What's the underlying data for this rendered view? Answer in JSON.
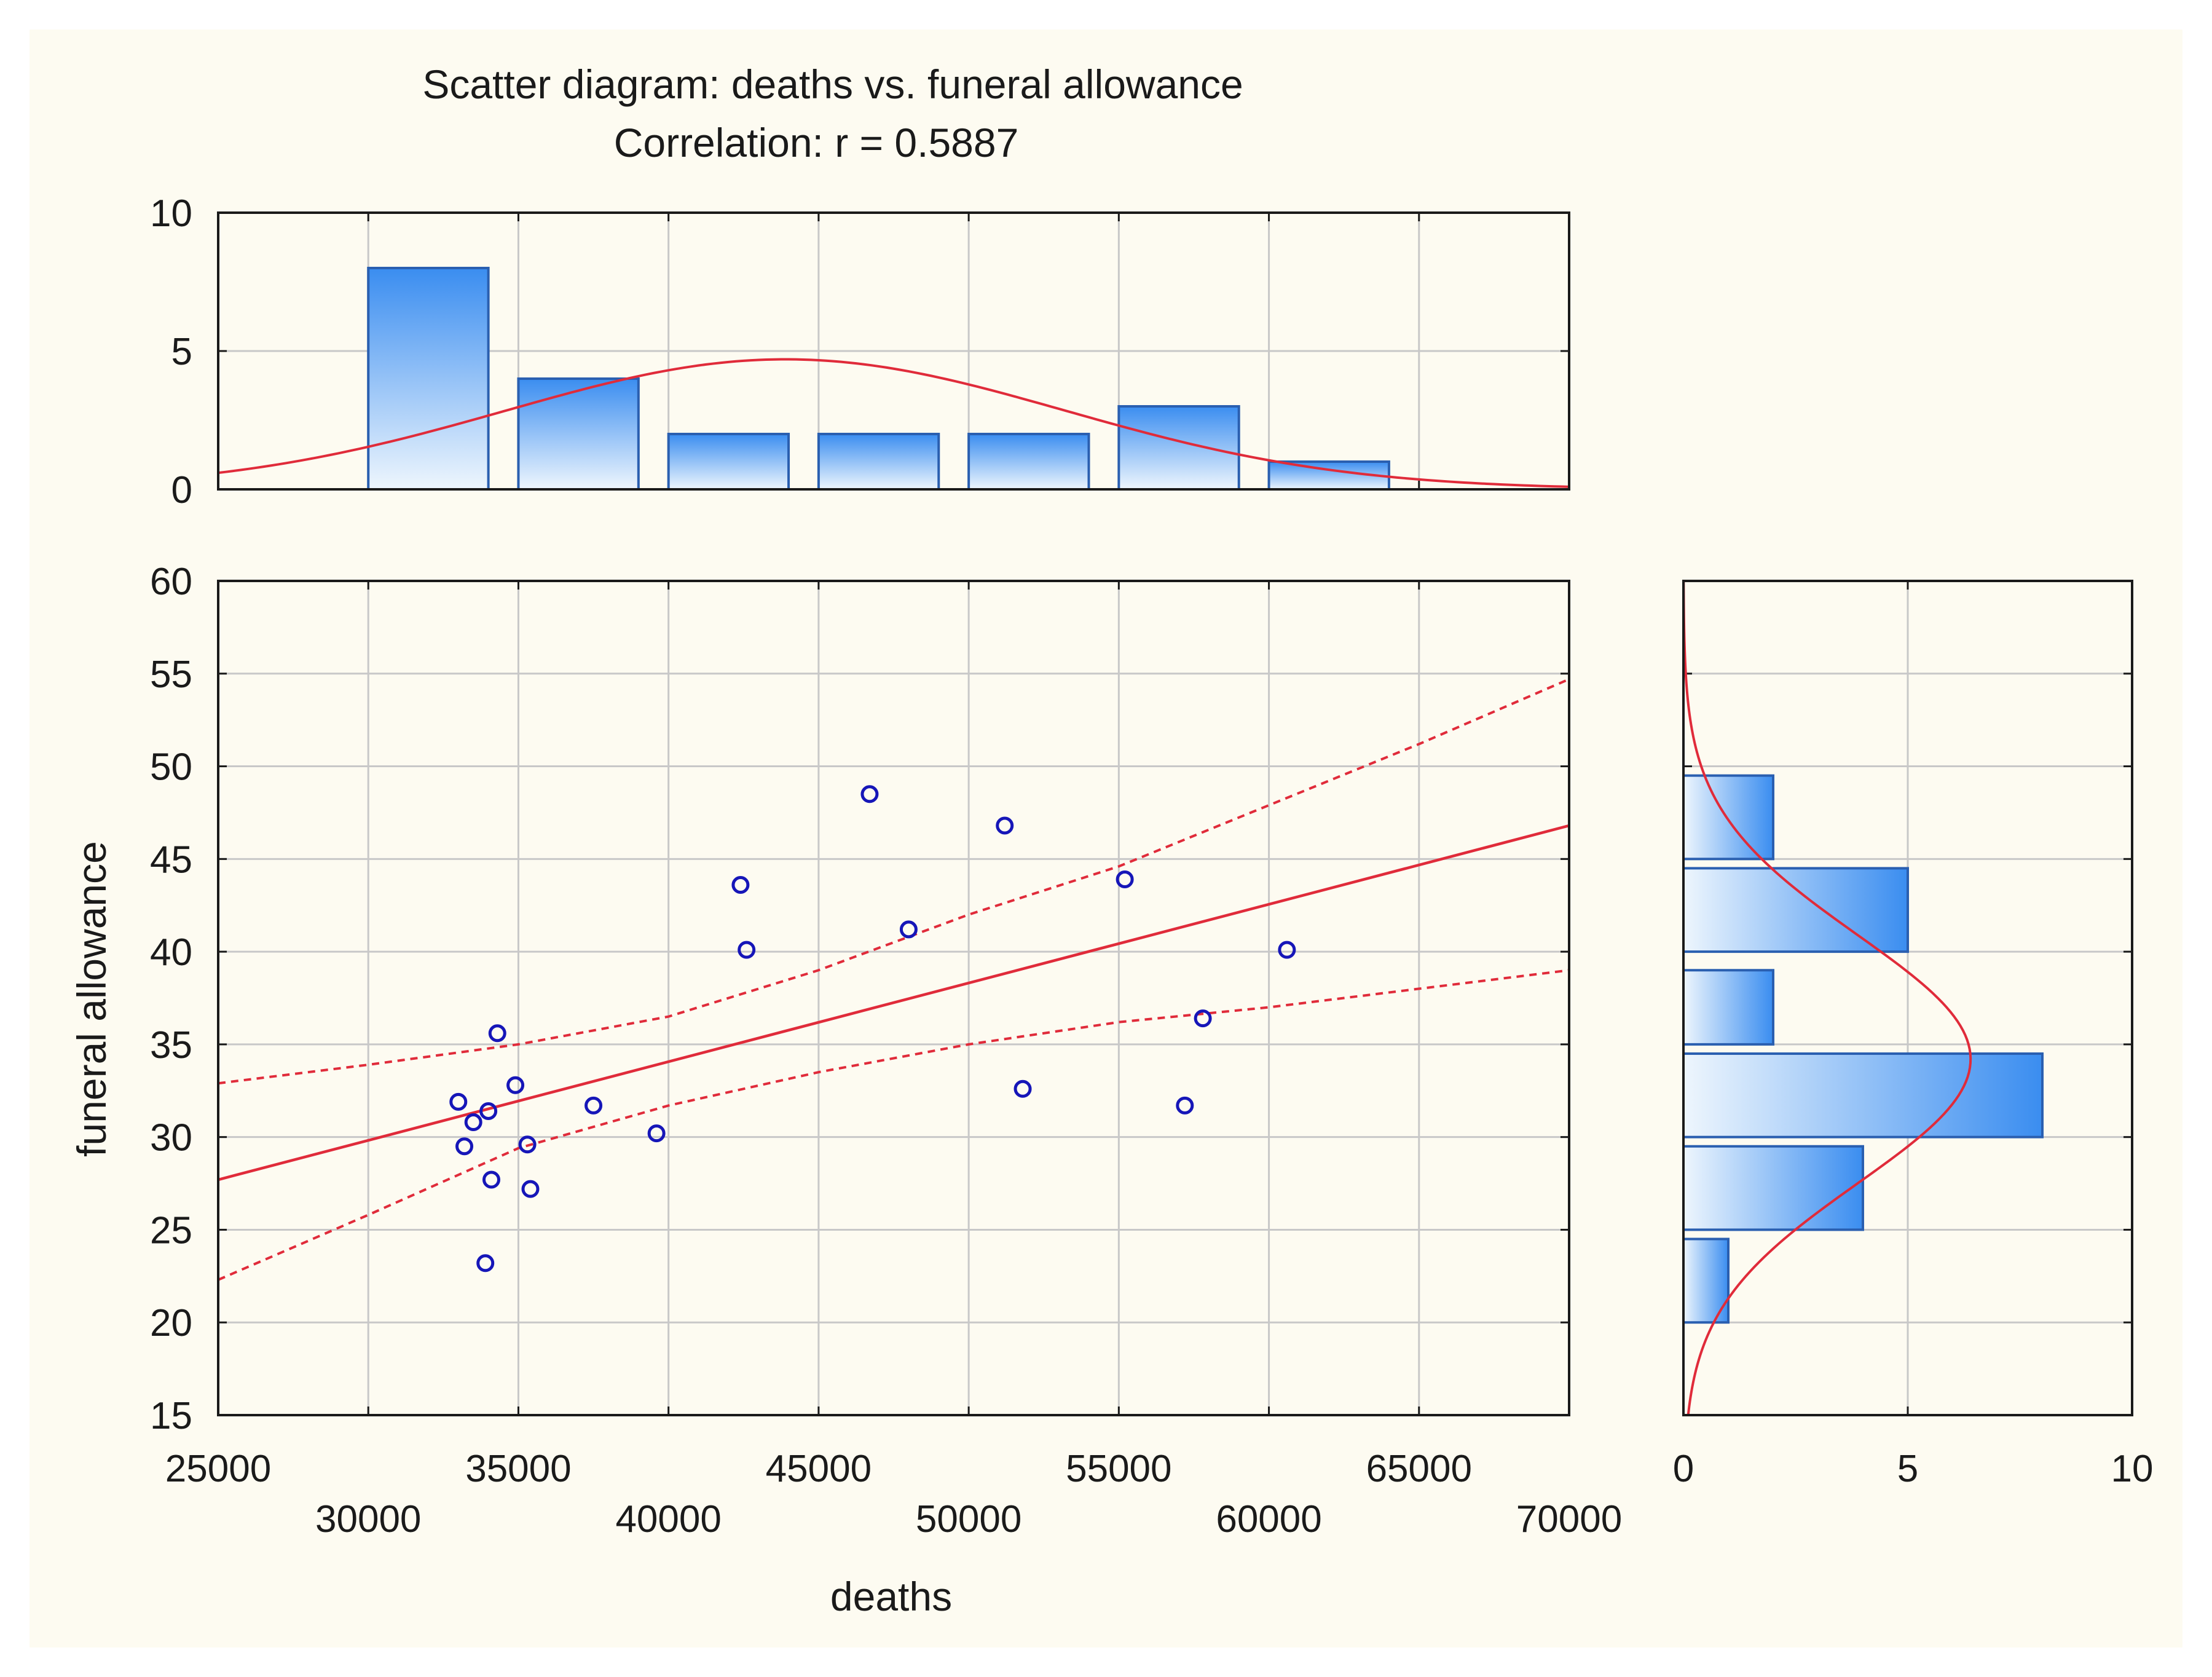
{
  "chart_data": {
    "type": "scatter",
    "title": "Scatter diagram: deaths vs. funeral allowance",
    "subtitle": "Correlation: r = 0.5887",
    "xlabel": "deaths",
    "ylabel": "funeral allowance",
    "xlim": [
      25000,
      70000
    ],
    "ylim": [
      15,
      60
    ],
    "x_ticks_upper": [
      "25000",
      "35000",
      "45000",
      "55000",
      "65000"
    ],
    "x_ticks_lower": [
      "30000",
      "40000",
      "50000",
      "60000",
      "70000"
    ],
    "y_ticks": [
      "15",
      "20",
      "25",
      "30",
      "35",
      "40",
      "45",
      "50",
      "55",
      "60"
    ],
    "grid": true,
    "points": [
      {
        "x": 33000,
        "y": 31.9
      },
      {
        "x": 33200,
        "y": 29.5
      },
      {
        "x": 33500,
        "y": 30.8
      },
      {
        "x": 33900,
        "y": 23.2
      },
      {
        "x": 34000,
        "y": 31.4
      },
      {
        "x": 34100,
        "y": 27.7
      },
      {
        "x": 34300,
        "y": 35.6
      },
      {
        "x": 34900,
        "y": 32.8
      },
      {
        "x": 35300,
        "y": 29.6
      },
      {
        "x": 35400,
        "y": 27.2
      },
      {
        "x": 37500,
        "y": 31.7
      },
      {
        "x": 39600,
        "y": 30.2
      },
      {
        "x": 42400,
        "y": 43.6
      },
      {
        "x": 42600,
        "y": 40.1
      },
      {
        "x": 46700,
        "y": 48.5
      },
      {
        "x": 48000,
        "y": 41.2
      },
      {
        "x": 51200,
        "y": 46.8
      },
      {
        "x": 51800,
        "y": 32.6
      },
      {
        "x": 55200,
        "y": 43.9
      },
      {
        "x": 57200,
        "y": 31.7
      },
      {
        "x": 57800,
        "y": 36.4
      },
      {
        "x": 60600,
        "y": 40.1
      }
    ],
    "fit_line": {
      "x": [
        25000,
        70000
      ],
      "y": [
        27.7,
        46.8
      ]
    },
    "ci_upper": {
      "x": [
        25000,
        30000,
        35000,
        40000,
        45000,
        50000,
        55000,
        60000,
        65000,
        70000
      ],
      "y": [
        32.9,
        33.9,
        35.0,
        36.5,
        39.0,
        42.0,
        44.6,
        47.9,
        51.2,
        54.7
      ]
    },
    "ci_lower": {
      "x": [
        25000,
        30000,
        35000,
        40000,
        45000,
        50000,
        55000,
        60000,
        65000,
        70000
      ],
      "y": [
        22.3,
        25.8,
        29.4,
        31.7,
        33.5,
        35.0,
        36.2,
        37.0,
        38.0,
        39.0
      ]
    },
    "top_histogram": {
      "bins": [
        [
          30000,
          34000
        ],
        [
          35000,
          39000
        ],
        [
          40000,
          44000
        ],
        [
          45000,
          49000
        ],
        [
          50000,
          54000
        ],
        [
          55000,
          59000
        ],
        [
          60000,
          64000
        ]
      ],
      "counts": [
        8,
        4,
        2,
        2,
        2,
        3,
        1
      ],
      "ylim": [
        0,
        10
      ],
      "y_ticks": [
        "0",
        "5",
        "10"
      ],
      "normal_curve": {
        "mean": 43900,
        "sd": 9300,
        "peak": 4.7
      }
    },
    "right_histogram": {
      "bins": [
        [
          20,
          24.5
        ],
        [
          25,
          29.5
        ],
        [
          30,
          34.5
        ],
        [
          35,
          39
        ],
        [
          40,
          44.5
        ],
        [
          45,
          49.5
        ]
      ],
      "counts": [
        1,
        4,
        8,
        2,
        5,
        2
      ],
      "xlim": [
        0,
        10
      ],
      "x_ticks": [
        "0",
        "5",
        "10"
      ],
      "normal_curve": {
        "mean": 34.2,
        "sd": 6.7,
        "peak": 6.4
      }
    }
  },
  "colors": {
    "background": "#fdfbf1",
    "fit_line": "#e02b3a",
    "point": "#1616b8",
    "bar_dark": "#3a8df0",
    "bar_light": "#eef6fd",
    "bar_border": "#2a5fb0",
    "grid": "#c8c8c8"
  }
}
